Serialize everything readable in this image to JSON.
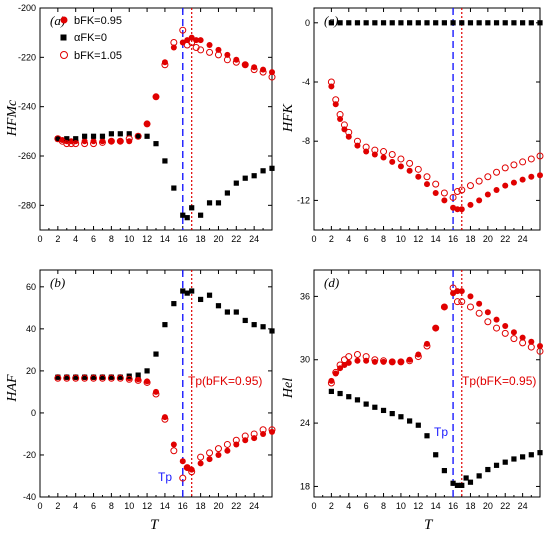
{
  "colors": {
    "red": "#e00000",
    "black": "#000000",
    "blue": "#1a1aff"
  },
  "legend": {
    "items": [
      {
        "label": "bFK=0.95",
        "marker": "filled-circle",
        "color": "#e00000"
      },
      {
        "label": "αFK=0",
        "marker": "filled-square",
        "color": "#000000"
      },
      {
        "label": "bFK=1.05",
        "marker": "open-circle",
        "color": "#e00000"
      }
    ]
  },
  "x_label": "T",
  "tp_label": "Tp",
  "tp_red_label": "Tp(bFK=0.95)",
  "chart_data": [
    {
      "panel": "(a)",
      "type": "scatter",
      "ylabel": "HFMc",
      "xlim": [
        0,
        26
      ],
      "ylim": [
        -290,
        -200
      ],
      "xticks": [
        0,
        2,
        4,
        6,
        8,
        10,
        12,
        14,
        16,
        18,
        20,
        22,
        24
      ],
      "yticks": [
        -280,
        -260,
        -240,
        -220,
        -200
      ],
      "vlines": {
        "blue_dashed": 16,
        "red_dotted": 17
      },
      "grid": false,
      "series": [
        {
          "name": "bFK=0.95",
          "x": [
            2,
            2.5,
            3,
            3.5,
            4,
            5,
            6,
            7,
            8,
            9,
            10,
            11,
            12,
            13,
            14,
            15,
            16,
            16.5,
            17,
            17.5,
            18,
            19,
            20,
            21,
            22,
            23,
            24,
            25,
            26
          ],
          "y": [
            -253,
            -253.5,
            -254,
            -254,
            -254,
            -254,
            -254,
            -254,
            -254,
            -254,
            -254,
            -252,
            -247,
            -236,
            -222,
            -216,
            -214,
            -213,
            -212,
            -213,
            -213,
            -215,
            -217,
            -219,
            -221,
            -223,
            -224,
            -225,
            -226
          ]
        },
        {
          "name": "αFK=0",
          "x": [
            2,
            3,
            4,
            5,
            6,
            7,
            8,
            9,
            10,
            11,
            12,
            13,
            14,
            15,
            16,
            16.5,
            17,
            18,
            19,
            20,
            21,
            22,
            23,
            24,
            25,
            26
          ],
          "y": [
            -253,
            -253,
            -253,
            -252,
            -252,
            -252,
            -251,
            -251,
            -251,
            -252,
            -252,
            -255,
            -262,
            -273,
            -284,
            -285,
            -281,
            -284,
            -279,
            -279,
            -275,
            -271,
            -269,
            -268,
            -266,
            -265
          ]
        },
        {
          "name": "bFK=1.05",
          "x": [
            2,
            2.5,
            3,
            3.5,
            4,
            5,
            6,
            7,
            8,
            9,
            10,
            11,
            12,
            13,
            14,
            15,
            16,
            16.5,
            17,
            17.5,
            18,
            19,
            20,
            21,
            22,
            23,
            24,
            25,
            26
          ],
          "y": [
            -253,
            -254,
            -255,
            -255,
            -255,
            -255,
            -255,
            -254.5,
            -254,
            -254,
            -253,
            -252,
            -247,
            -236,
            -223,
            -214,
            -209,
            -215,
            -214,
            -216,
            -217,
            -218,
            -219,
            -221,
            -222,
            -223,
            -225,
            -226,
            -228
          ]
        }
      ]
    },
    {
      "panel": "(c)",
      "type": "scatter",
      "ylabel": "HFK",
      "xlim": [
        0,
        26
      ],
      "ylim": [
        -14,
        1
      ],
      "xticks": [
        0,
        2,
        4,
        6,
        8,
        10,
        12,
        14,
        16,
        18,
        20,
        22,
        24
      ],
      "yticks": [
        -12,
        -8,
        -4,
        0
      ],
      "vlines": {
        "blue_dashed": 16,
        "red_dotted": 17
      },
      "grid": false,
      "series": [
        {
          "name": "bFK=0.95",
          "x": [
            2,
            2.5,
            3,
            3.5,
            4,
            5,
            6,
            7,
            8,
            9,
            10,
            11,
            12,
            13,
            14,
            15,
            16,
            16.5,
            17,
            18,
            19,
            20,
            21,
            22,
            23,
            24,
            25,
            26
          ],
          "y": [
            -4.3,
            -5.5,
            -6.5,
            -7.2,
            -7.7,
            -8.3,
            -8.7,
            -8.9,
            -9.1,
            -9.4,
            -9.7,
            -10,
            -10.4,
            -10.9,
            -11.5,
            -12,
            -12.5,
            -12.6,
            -12.6,
            -12.3,
            -12,
            -11.6,
            -11.3,
            -11,
            -10.8,
            -10.6,
            -10.4,
            -10.3
          ]
        },
        {
          "name": "αFK=0",
          "x": [
            2,
            3,
            4,
            5,
            6,
            7,
            8,
            9,
            10,
            11,
            12,
            13,
            14,
            15,
            16,
            17,
            18,
            19,
            20,
            21,
            22,
            23,
            24,
            25,
            26
          ],
          "y": [
            0,
            0,
            0,
            0,
            0,
            0,
            0,
            0,
            0,
            0,
            0,
            0,
            0,
            0,
            0,
            0,
            0,
            0,
            0,
            0,
            0,
            0,
            0,
            0,
            0
          ]
        },
        {
          "name": "bFK=1.05",
          "x": [
            2,
            2.5,
            3,
            3.5,
            4,
            5,
            6,
            7,
            8,
            9,
            10,
            11,
            12,
            13,
            14,
            15,
            16,
            16.5,
            17,
            18,
            19,
            20,
            21,
            22,
            23,
            24,
            25,
            26
          ],
          "y": [
            -4.0,
            -5.2,
            -6.2,
            -6.9,
            -7.4,
            -8.0,
            -8.4,
            -8.6,
            -8.7,
            -8.9,
            -9.2,
            -9.5,
            -9.9,
            -10.4,
            -10.9,
            -11.5,
            -11.8,
            -11.4,
            -11.3,
            -11.0,
            -10.7,
            -10.4,
            -10.1,
            -9.8,
            -9.6,
            -9.4,
            -9.2,
            -9.0
          ]
        }
      ]
    },
    {
      "panel": "(b)",
      "type": "scatter",
      "ylabel": "HAF",
      "xlim": [
        0,
        26
      ],
      "ylim": [
        -40,
        68
      ],
      "xticks": [
        0,
        2,
        4,
        6,
        8,
        10,
        12,
        14,
        16,
        18,
        20,
        22,
        24
      ],
      "yticks": [
        -40,
        -20,
        0,
        20,
        40,
        60
      ],
      "vlines": {
        "blue_dashed": 16,
        "red_dotted": 17
      },
      "grid": false,
      "series": [
        {
          "name": "bFK=0.95",
          "x": [
            2,
            3,
            4,
            5,
            6,
            7,
            8,
            9,
            10,
            11,
            12,
            13,
            14,
            15,
            16,
            16.5,
            17,
            18,
            19,
            20,
            21,
            22,
            23,
            24,
            25,
            26
          ],
          "y": [
            17,
            17,
            17,
            17,
            17,
            17,
            17,
            17,
            16.5,
            16,
            15,
            10,
            -2,
            -15,
            -23,
            -26,
            -27,
            -24,
            -22,
            -20,
            -18,
            -15,
            -13,
            -12,
            -10,
            -9
          ]
        },
        {
          "name": "αFK=0",
          "x": [
            2,
            3,
            4,
            5,
            6,
            7,
            8,
            9,
            10,
            11,
            12,
            13,
            14,
            15,
            16,
            16.5,
            17,
            18,
            19,
            20,
            21,
            22,
            23,
            24,
            25,
            26
          ],
          "y": [
            17,
            17,
            17,
            17,
            17,
            17,
            17,
            17,
            17.5,
            18,
            20,
            28,
            42,
            52,
            58,
            57,
            58,
            54,
            56,
            51,
            48,
            48,
            44,
            42,
            41,
            39
          ]
        },
        {
          "name": "bFK=1.05",
          "x": [
            2,
            3,
            4,
            5,
            6,
            7,
            8,
            9,
            10,
            11,
            12,
            13,
            14,
            15,
            16,
            16.5,
            17,
            18,
            19,
            20,
            21,
            22,
            23,
            24,
            25,
            26
          ],
          "y": [
            16.5,
            16.5,
            16.5,
            16.5,
            16.5,
            16.5,
            16.5,
            16.5,
            16,
            15.5,
            14.5,
            9,
            -3,
            -18,
            -31,
            -26,
            -28,
            -21,
            -19,
            -17,
            -15,
            -13,
            -11,
            -10,
            -8,
            -8
          ]
        }
      ]
    },
    {
      "panel": "(d)",
      "type": "scatter",
      "ylabel": "Hel",
      "xlim": [
        0,
        26
      ],
      "ylim": [
        17,
        38.5
      ],
      "xticks": [
        0,
        2,
        4,
        6,
        8,
        10,
        12,
        14,
        16,
        18,
        20,
        22,
        24
      ],
      "yticks": [
        18,
        24,
        30,
        36
      ],
      "vlines": {
        "blue_dashed": 16,
        "red_dotted": 17
      },
      "grid": false,
      "series": [
        {
          "name": "bFK=0.95",
          "x": [
            2,
            2.5,
            3,
            3.5,
            4,
            5,
            6,
            7,
            8,
            9,
            10,
            11,
            12,
            13,
            14,
            15,
            16,
            16.5,
            17,
            18,
            19,
            20,
            21,
            22,
            23,
            24,
            25,
            26
          ],
          "y": [
            28,
            28.7,
            29.2,
            29.5,
            29.7,
            29.9,
            29.9,
            29.8,
            29.8,
            29.8,
            29.8,
            30,
            30.5,
            31.5,
            33,
            35,
            36.3,
            36.5,
            36.5,
            36,
            35.3,
            34.5,
            33.8,
            33.2,
            32.6,
            32.1,
            31.7,
            31.3
          ]
        },
        {
          "name": "αFK=0",
          "x": [
            2,
            3,
            4,
            5,
            6,
            7,
            8,
            9,
            10,
            11,
            12,
            13,
            14,
            15,
            16,
            16.5,
            17,
            17.5,
            18,
            19,
            20,
            21,
            22,
            23,
            24,
            25,
            26
          ],
          "y": [
            27,
            26.8,
            26.5,
            26.2,
            25.8,
            25.5,
            25.2,
            24.9,
            24.6,
            24.2,
            23.8,
            22.8,
            21,
            19.5,
            18.3,
            18.1,
            18.1,
            18.8,
            18.4,
            19,
            19.6,
            20,
            20.3,
            20.6,
            20.8,
            21,
            21.2
          ]
        },
        {
          "name": "bFK=1.05",
          "x": [
            2,
            2.5,
            3,
            3.5,
            4,
            5,
            6,
            7,
            8,
            9,
            10,
            11,
            12,
            13,
            14,
            15,
            16,
            16.5,
            17,
            18,
            19,
            20,
            21,
            22,
            23,
            24,
            25,
            26
          ],
          "y": [
            27.8,
            28.8,
            29.5,
            30,
            30.3,
            30.5,
            30.3,
            30,
            29.9,
            29.8,
            29.8,
            29.9,
            30.3,
            31.3,
            33,
            35,
            36.8,
            35.5,
            35.5,
            35,
            34.4,
            33.6,
            33,
            32.5,
            32,
            31.6,
            31.2,
            30.8
          ]
        }
      ]
    }
  ]
}
